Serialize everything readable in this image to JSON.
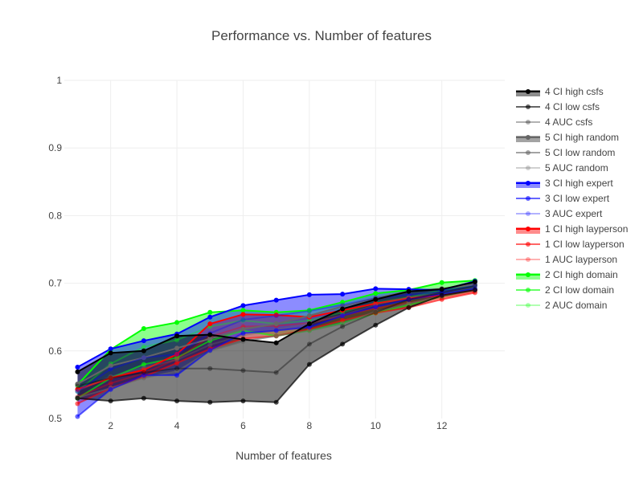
{
  "chart_data": {
    "type": "area",
    "title": "Performance vs. Number of features",
    "xlabel": "Number of features",
    "ylabel": "",
    "xlim": [
      0.6,
      13.9
    ],
    "ylim": [
      0.5,
      1.0
    ],
    "xticks": [
      2,
      4,
      6,
      8,
      10,
      12
    ],
    "yticks": [
      0.5,
      0.6,
      0.7,
      0.8,
      0.9,
      1
    ],
    "grid": true,
    "legend_position": "right",
    "x": [
      1,
      2,
      3,
      4,
      5,
      6,
      7,
      8,
      9,
      10,
      11,
      12,
      13
    ],
    "series": [
      {
        "name": "4 CI high csfs",
        "group": "csfs",
        "role": "high",
        "color": "#000000",
        "values": [
          0.569,
          0.597,
          0.6,
          0.622,
          0.624,
          0.617,
          0.612,
          0.64,
          0.662,
          0.676,
          0.688,
          0.691,
          0.702
        ]
      },
      {
        "name": "4 CI low csfs",
        "group": "csfs",
        "role": "low",
        "color": "#000000",
        "values": [
          0.53,
          0.526,
          0.53,
          0.526,
          0.524,
          0.526,
          0.524,
          0.58,
          0.61,
          0.638,
          0.664,
          0.682,
          0.69
        ]
      },
      {
        "name": "4 AUC csfs",
        "group": "csfs",
        "role": "auc",
        "color": "#000000",
        "values": [
          0.548,
          0.56,
          0.568,
          0.574,
          0.574,
          0.571,
          0.568,
          0.61,
          0.636,
          0.657,
          0.676,
          0.686,
          0.696
        ]
      },
      {
        "name": "5 CI high random",
        "group": "random",
        "role": "high",
        "color": "#666666",
        "values": [
          0.551,
          0.578,
          0.59,
          0.604,
          0.618,
          0.632,
          0.64,
          0.652,
          0.666,
          0.678,
          0.688,
          0.692,
          0.698
        ]
      },
      {
        "name": "5 CI low random",
        "group": "random",
        "role": "low",
        "color": "#666666",
        "values": [
          0.531,
          0.545,
          0.56,
          0.57,
          0.6,
          0.614,
          0.622,
          0.63,
          0.64,
          0.658,
          0.67,
          0.681,
          0.69
        ]
      },
      {
        "name": "5 AUC random",
        "group": "random",
        "role": "auc",
        "color": "#666666",
        "values": [
          0.541,
          0.562,
          0.575,
          0.587,
          0.609,
          0.623,
          0.631,
          0.641,
          0.653,
          0.668,
          0.679,
          0.686,
          0.694
        ]
      },
      {
        "name": "3 CI high expert",
        "group": "expert",
        "role": "high",
        "color": "#0000ff",
        "values": [
          0.576,
          0.603,
          0.615,
          0.625,
          0.65,
          0.667,
          0.675,
          0.683,
          0.684,
          0.692,
          0.691,
          0.69,
          0.703
        ]
      },
      {
        "name": "3 CI low expert",
        "group": "expert",
        "role": "low",
        "color": "#0000ff",
        "values": [
          0.503,
          0.543,
          0.564,
          0.564,
          0.601,
          0.626,
          0.63,
          0.635,
          0.652,
          0.665,
          0.676,
          0.684,
          0.692
        ]
      },
      {
        "name": "3 AUC expert",
        "group": "expert",
        "role": "auc",
        "color": "#0000ff",
        "values": [
          0.54,
          0.573,
          0.59,
          0.595,
          0.626,
          0.646,
          0.652,
          0.659,
          0.668,
          0.678,
          0.683,
          0.687,
          0.697
        ]
      },
      {
        "name": "1 CI high layperson",
        "group": "layperson",
        "role": "high",
        "color": "#ff0000",
        "values": [
          0.543,
          0.56,
          0.572,
          0.595,
          0.64,
          0.654,
          0.653,
          0.65,
          0.66,
          0.67,
          0.678,
          0.682,
          0.69
        ]
      },
      {
        "name": "1 CI low layperson",
        "group": "layperson",
        "role": "low",
        "color": "#ff0000",
        "values": [
          0.522,
          0.545,
          0.562,
          0.582,
          0.603,
          0.618,
          0.622,
          0.632,
          0.645,
          0.656,
          0.664,
          0.676,
          0.686
        ]
      },
      {
        "name": "1 AUC layperson",
        "group": "layperson",
        "role": "auc",
        "color": "#ff0000",
        "values": [
          0.532,
          0.552,
          0.567,
          0.588,
          0.621,
          0.636,
          0.637,
          0.641,
          0.652,
          0.663,
          0.671,
          0.679,
          0.688
        ]
      },
      {
        "name": "2 CI high domain",
        "group": "domain",
        "role": "high",
        "color": "#00ff00",
        "values": [
          0.55,
          0.602,
          0.633,
          0.642,
          0.657,
          0.66,
          0.657,
          0.66,
          0.672,
          0.685,
          0.69,
          0.701,
          0.704
        ]
      },
      {
        "name": "2 CI low domain",
        "group": "domain",
        "role": "low",
        "color": "#00ff00",
        "values": [
          0.53,
          0.56,
          0.58,
          0.59,
          0.615,
          0.63,
          0.622,
          0.63,
          0.641,
          0.656,
          0.668,
          0.68,
          0.69
        ]
      },
      {
        "name": "2 AUC domain",
        "group": "domain",
        "role": "auc",
        "color": "#00ff00",
        "values": [
          0.54,
          0.581,
          0.606,
          0.616,
          0.636,
          0.645,
          0.64,
          0.645,
          0.657,
          0.671,
          0.679,
          0.69,
          0.697
        ]
      }
    ]
  }
}
